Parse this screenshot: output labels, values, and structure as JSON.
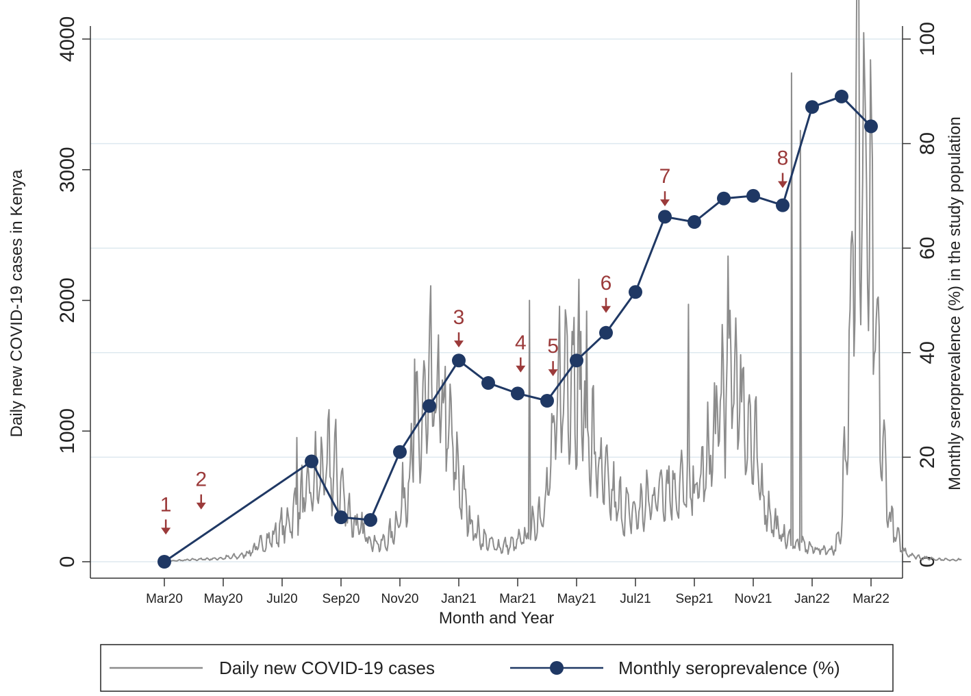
{
  "chart_data": {
    "type": "line",
    "xlabel": "Month and Year",
    "ylabel_left": "Daily new COVID-19 cases in Kenya",
    "ylabel_right": "Monthly seroprevalence (%) in the study population",
    "ylim_left": [
      0,
      4000
    ],
    "ylim_right": [
      0,
      100
    ],
    "yticks_left": [
      0,
      1000,
      2000,
      3000,
      4000
    ],
    "yticks_right": [
      0,
      20,
      40,
      60,
      80,
      100
    ],
    "grid": true,
    "x_tick_labels": [
      "Mar20",
      "May20",
      "Jul20",
      "Sep20",
      "Nov20",
      "Jan21",
      "Mar21",
      "May21",
      "Jul21",
      "Sep21",
      "Nov21",
      "Jan22",
      "Mar22"
    ],
    "x_tick_month_index": [
      0,
      2,
      4,
      6,
      8,
      10,
      12,
      14,
      16,
      18,
      20,
      22,
      24
    ],
    "legend": {
      "position": "bottom",
      "daily_label": "Daily new COVID-19 cases",
      "sero_label": "Monthly seroprevalence (%)"
    },
    "daily_cases": {
      "name": "Daily new COVID-19 cases",
      "color": "#8c8c8c",
      "note": "weekly-averaged approximation of the daily series",
      "week_start_month": 0,
      "weeks_per_month": 4.35,
      "values": [
        0,
        5,
        10,
        12,
        15,
        18,
        20,
        22,
        25,
        30,
        35,
        40,
        60,
        90,
        120,
        150,
        190,
        230,
        280,
        350,
        420,
        500,
        580,
        650,
        700,
        680,
        560,
        420,
        300,
        240,
        200,
        160,
        130,
        160,
        250,
        420,
        620,
        850,
        1050,
        1200,
        1250,
        1200,
        1000,
        750,
        520,
        350,
        230,
        170,
        140,
        120,
        115,
        120,
        140,
        170,
        220,
        300,
        450,
        700,
        1100,
        1450,
        1550,
        1450,
        1200,
        950,
        750,
        600,
        500,
        420,
        380,
        360,
        380,
        420,
        480,
        560,
        600,
        580,
        560,
        540,
        560,
        600,
        700,
        900,
        1150,
        1400,
        1500,
        1350,
        1100,
        850,
        600,
        420,
        300,
        220,
        170,
        140,
        120,
        110,
        100,
        95,
        90,
        100,
        200,
        1500,
        3000,
        3200,
        2600,
        1800,
        900,
        400,
        200,
        100,
        60,
        40,
        30,
        25,
        20,
        18,
        15,
        15
      ],
      "peaks": [
        {
          "month": 4.5,
          "value": 950
        },
        {
          "month": 8.5,
          "value": 1550
        },
        {
          "month": 12.4,
          "value": 2000
        },
        {
          "month": 17.8,
          "value": 1970
        },
        {
          "month": 21.3,
          "value": 3740
        },
        {
          "month": 21.6,
          "value": 3300
        }
      ]
    },
    "seroprevalence": {
      "name": "Monthly seroprevalence (%)",
      "color": "#1f3864",
      "x_month": [
        0,
        5,
        6,
        7,
        8,
        9,
        10,
        11,
        12,
        13,
        14,
        15,
        16,
        17,
        18,
        19,
        20,
        21,
        22,
        23,
        24
      ],
      "values": [
        0,
        19.2,
        8.5,
        8.0,
        21.0,
        29.8,
        38.5,
        34.2,
        32.2,
        30.8,
        38.5,
        43.8,
        51.6,
        66.0,
        65.0,
        69.5,
        70.0,
        68.2,
        87.0,
        89.0,
        83.3
      ]
    },
    "annotations": [
      {
        "label": "1",
        "month": 0.05,
        "value_right": 5.2
      },
      {
        "label": "2",
        "month": 1.25,
        "value_right": 10.0
      },
      {
        "label": "3",
        "month": 10.0,
        "value_right": 41.0
      },
      {
        "label": "4",
        "month": 12.1,
        "value_right": 36.2
      },
      {
        "label": "5",
        "month": 13.2,
        "value_right": 35.5
      },
      {
        "label": "6",
        "month": 15.0,
        "value_right": 47.6
      },
      {
        "label": "7",
        "month": 17.0,
        "value_right": 68.0
      },
      {
        "label": "8",
        "month": 21.0,
        "value_right": 71.5
      }
    ]
  }
}
